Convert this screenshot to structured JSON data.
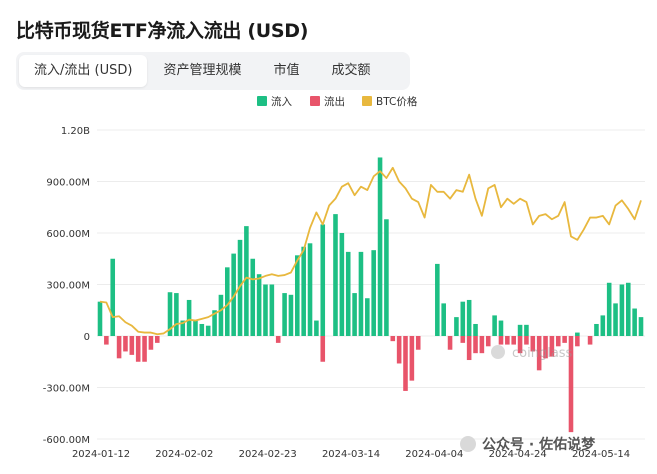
{
  "page": {
    "title": "比特币现货ETF净流入流出 (USD)",
    "tabs": [
      {
        "label": "流入/流出 (USD)",
        "active": true
      },
      {
        "label": "资产管理规模",
        "active": false
      },
      {
        "label": "市值",
        "active": false
      },
      {
        "label": "成交额",
        "active": false
      }
    ],
    "watermark": "coinglass",
    "source_tag": "公众号 · 佐佑说梦"
  },
  "colors": {
    "inflow": "#1dbf84",
    "outflow": "#e8546a",
    "btc": "#e8b83e",
    "grid": "#ececec"
  },
  "chart_data": {
    "type": "bar",
    "legend": [
      "流入",
      "流出",
      "BTC价格"
    ],
    "legend_placement": "top-center",
    "y_ticks": [
      "1.20B",
      "900.00M",
      "600.00M",
      "300.00M",
      "0",
      "-300.00M",
      "-600.00M"
    ],
    "ylim": [
      -600,
      1200
    ],
    "y_unit": "M USD",
    "x_ticks": [
      "2024-01-12",
      "2024-02-02",
      "2024-02-23",
      "2024-03-14",
      "2024-04-04",
      "2024-04-24",
      "2024-05-14"
    ],
    "grid": "horizontal",
    "series": [
      {
        "name": "流入",
        "values": [
          200,
          0,
          450,
          0,
          0,
          0,
          0,
          0,
          0,
          0,
          0,
          255,
          250,
          90,
          210,
          90,
          70,
          60,
          150,
          240,
          400,
          480,
          560,
          640,
          450,
          360,
          300,
          300,
          0,
          250,
          240,
          470,
          520,
          540,
          90,
          650,
          0,
          710,
          600,
          490,
          250,
          490,
          220,
          500,
          1040,
          680,
          0,
          0,
          0,
          0,
          0,
          0,
          0,
          420,
          190,
          0,
          110,
          200,
          210,
          70,
          0,
          0,
          120,
          90,
          0,
          0,
          65,
          65,
          0,
          0,
          0,
          0,
          0,
          0,
          0,
          20,
          0,
          0,
          70,
          120,
          310,
          190,
          300,
          310,
          160,
          110
        ]
      },
      {
        "name": "流出",
        "values": [
          0,
          -50,
          0,
          -130,
          -90,
          -110,
          -150,
          -150,
          -80,
          -40,
          0,
          0,
          0,
          0,
          0,
          0,
          0,
          0,
          0,
          0,
          0,
          0,
          0,
          0,
          0,
          0,
          0,
          0,
          -40,
          0,
          0,
          0,
          0,
          0,
          0,
          -150,
          0,
          0,
          0,
          0,
          0,
          0,
          0,
          0,
          0,
          0,
          -30,
          -160,
          -320,
          -260,
          -80,
          0,
          0,
          0,
          0,
          -80,
          0,
          -40,
          -140,
          -100,
          -100,
          -60,
          0,
          -50,
          -50,
          -50,
          -100,
          -50,
          -90,
          -200,
          -130,
          -120,
          -60,
          -40,
          -560,
          -60,
          0,
          -50,
          0,
          0,
          0,
          0,
          0,
          0,
          0,
          0
        ]
      },
      {
        "name": "BTC价格",
        "values": [
          200,
          195,
          110,
          115,
          80,
          60,
          25,
          20,
          20,
          10,
          15,
          40,
          70,
          75,
          95,
          90,
          100,
          110,
          130,
          150,
          180,
          230,
          290,
          340,
          330,
          335,
          350,
          360,
          350,
          355,
          370,
          440,
          500,
          630,
          720,
          650,
          760,
          800,
          870,
          890,
          820,
          870,
          850,
          930,
          960,
          920,
          980,
          900,
          860,
          800,
          780,
          690,
          880,
          840,
          840,
          800,
          850,
          840,
          940,
          800,
          700,
          860,
          880,
          750,
          800,
          770,
          800,
          780,
          650,
          700,
          710,
          680,
          700,
          780,
          580,
          560,
          620,
          690,
          690,
          700,
          650,
          760,
          790,
          740,
          680,
          790
        ]
      }
    ]
  }
}
